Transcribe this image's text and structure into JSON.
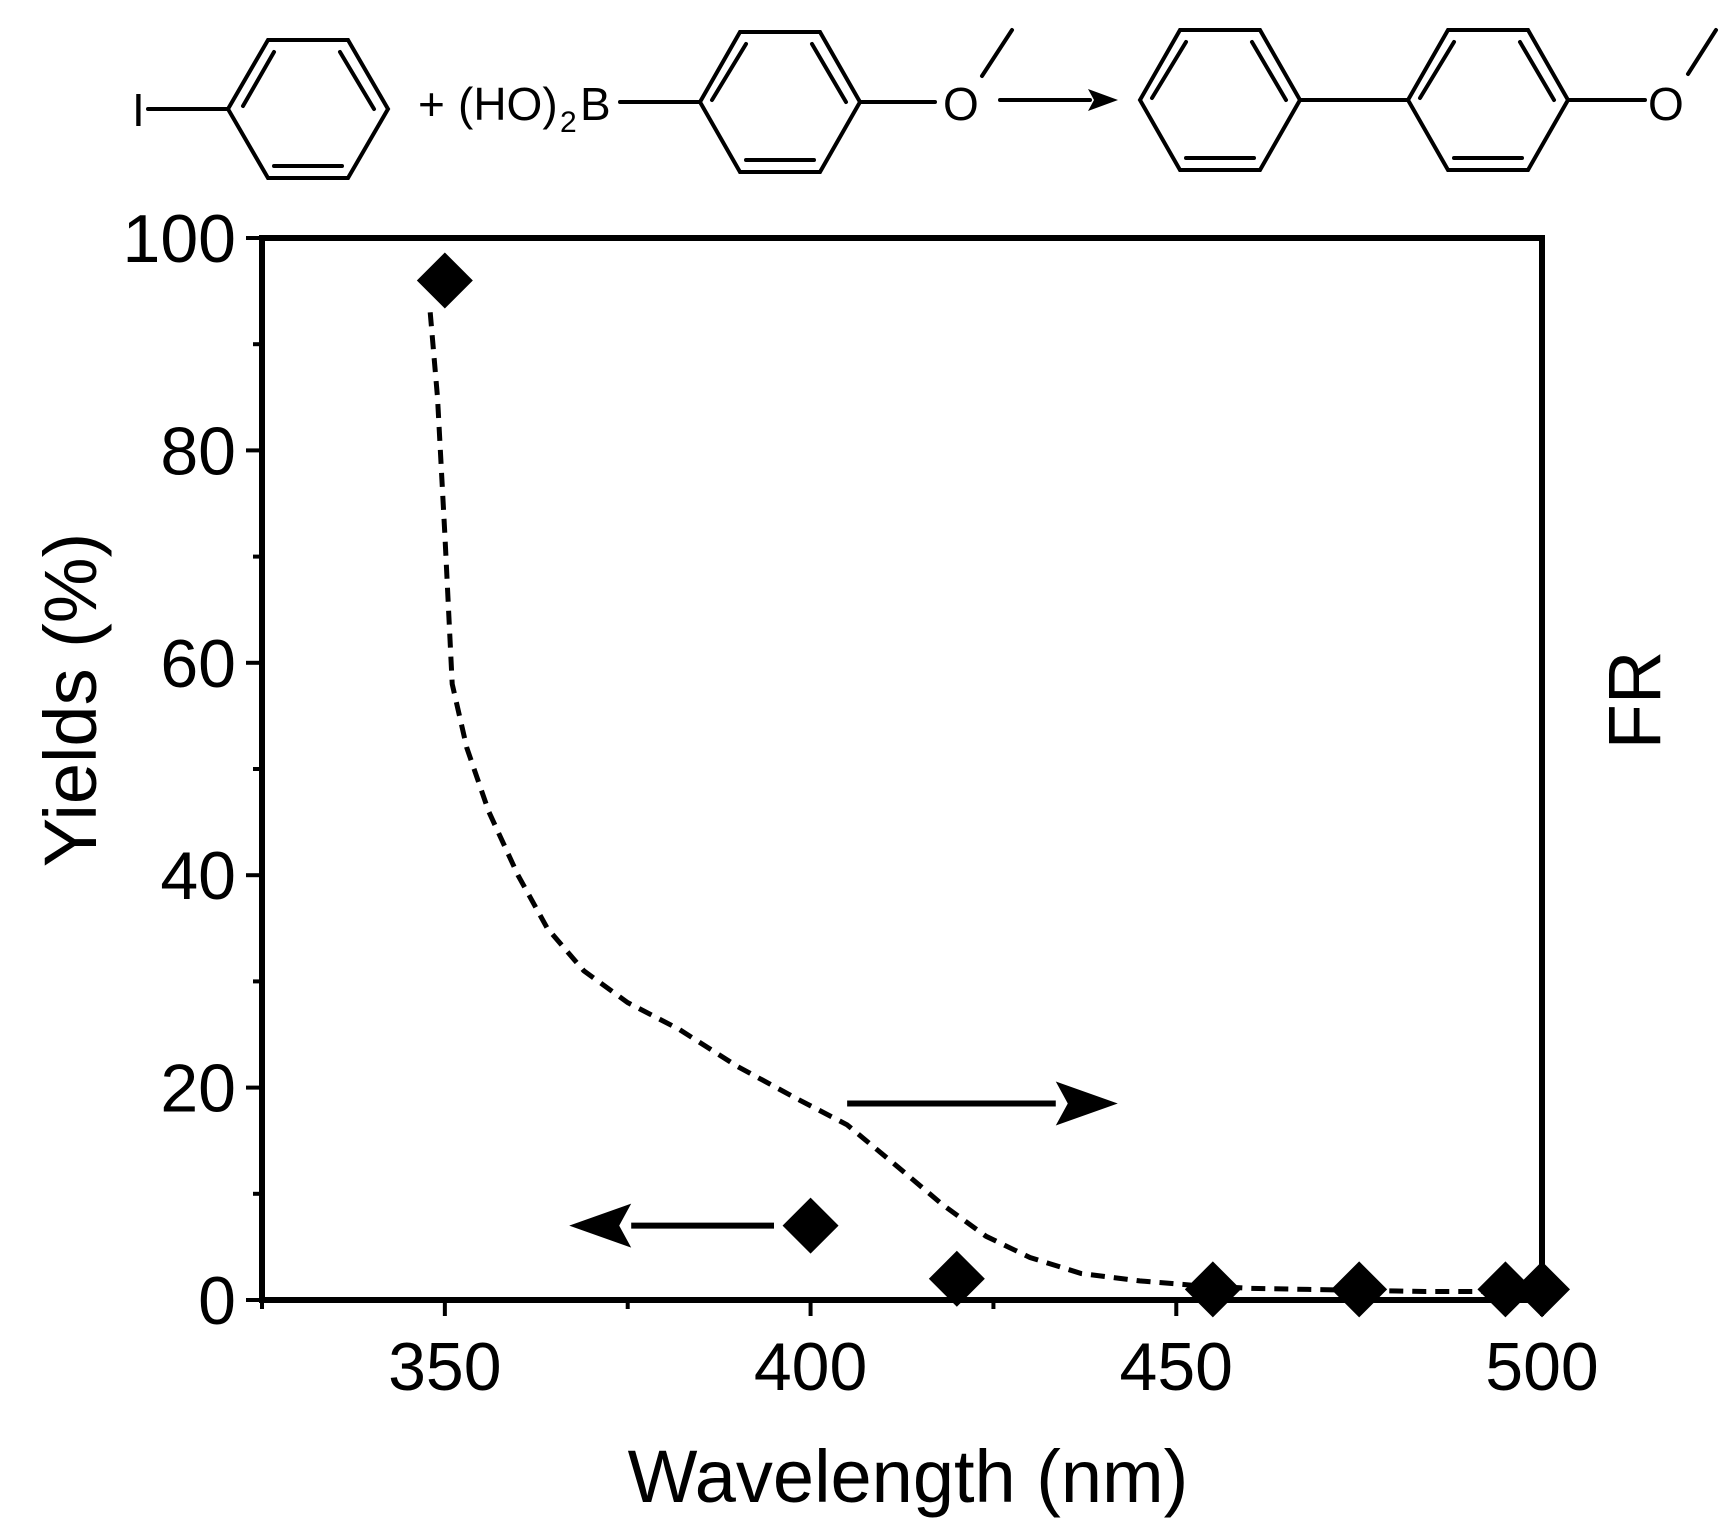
{
  "scheme": {
    "iodine": "I",
    "plus": "+",
    "boronic_prefix": "(HO)",
    "boronic_sub": "2",
    "boron": "B",
    "oxygen_1": "O",
    "oxygen_2": "O"
  },
  "chart_data": {
    "type": "scatter",
    "xlabel": "Wavelength (nm)",
    "ylabel": "Yields (%)",
    "y2label": "FR",
    "xlim": [
      325,
      500
    ],
    "ylim": [
      0,
      100
    ],
    "x_ticks": [
      350,
      400,
      450,
      500
    ],
    "y_ticks": [
      0,
      20,
      40,
      60,
      80,
      100
    ],
    "x_tick_labels": [
      "350",
      "400",
      "450",
      "500"
    ],
    "y_tick_labels": [
      "0",
      "20",
      "40",
      "60",
      "80",
      "100"
    ],
    "grid": false,
    "series": [
      {
        "marker": "diamond",
        "color": "#000000",
        "axis": "left",
        "x": [
          350,
          400,
          420,
          455,
          475,
          495,
          500
        ],
        "y": [
          96,
          7,
          2,
          1,
          1,
          1,
          1
        ]
      },
      {
        "line_style": "dashed",
        "color": "#000000",
        "axis": "right",
        "x": [
          348,
          349,
          350,
          351,
          353,
          356,
          360,
          364,
          369,
          375,
          382,
          390,
          398,
          405,
          412,
          418,
          424,
          430,
          437,
          445,
          452,
          460,
          468,
          476,
          484,
          492,
          500
        ],
        "y": [
          93,
          85,
          72,
          58,
          52,
          46,
          40,
          35,
          31,
          28,
          25.5,
          22,
          19,
          16.5,
          12.5,
          9,
          6,
          4,
          2.5,
          1.8,
          1.4,
          1.1,
          1,
          0.9,
          0.8,
          0.8,
          0.8
        ]
      }
    ],
    "annotations": [
      {
        "type": "arrow",
        "direction": "left",
        "x_from": 395,
        "x_to": 367,
        "y": 7
      },
      {
        "type": "arrow",
        "direction": "right",
        "x_from": 405,
        "x_to": 442,
        "y": 18.5
      }
    ]
  }
}
